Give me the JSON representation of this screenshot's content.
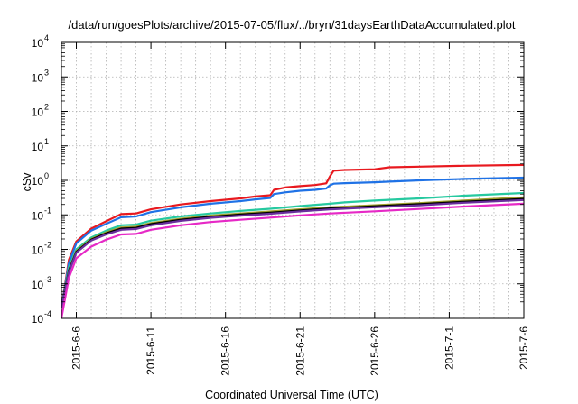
{
  "chart_data": {
    "type": "line",
    "title": "/data/run/goesPlots/archive/2015-07-05/flux/../bryn/31daysEarthDataAccumulated.plot",
    "xlabel": "Coordinated Universal Time (UTC)",
    "ylabel": "cSv",
    "y_scale": "log",
    "ylim": [
      0.0001,
      10000
    ],
    "y_ticks": [
      {
        "base": "10",
        "exp": "-4"
      },
      {
        "base": "10",
        "exp": "-3"
      },
      {
        "base": "10",
        "exp": "-2"
      },
      {
        "base": "10",
        "exp": "-1"
      },
      {
        "base": "10",
        "exp": "0"
      },
      {
        "base": "10",
        "exp": "1"
      },
      {
        "base": "10",
        "exp": "2"
      },
      {
        "base": "10",
        "exp": "3"
      },
      {
        "base": "10",
        "exp": "4"
      }
    ],
    "xlim": [
      "2015-06-05",
      "2015-07-06"
    ],
    "x_tick_labels": [
      "2015-6-6",
      "2015-6-11",
      "2015-6-16",
      "2015-6-21",
      "2015-6-26",
      "2015-7-1",
      "2015-7-6"
    ],
    "x_tick_dates": [
      "2015-06-06",
      "2015-06-11",
      "2015-06-16",
      "2015-06-21",
      "2015-06-26",
      "2015-07-01",
      "2015-07-06"
    ],
    "grid": true,
    "series": [
      {
        "color": "#e8191f",
        "points": [
          [
            "2015-06-05",
            0.0002
          ],
          [
            "2015-06-05T12:00",
            0.005
          ],
          [
            "2015-06-06",
            0.017
          ],
          [
            "2015-06-07",
            0.04
          ],
          [
            "2015-06-08",
            0.065
          ],
          [
            "2015-06-09",
            0.105
          ],
          [
            "2015-06-10",
            0.11
          ],
          [
            "2015-06-11",
            0.145
          ],
          [
            "2015-06-13",
            0.2
          ],
          [
            "2015-06-15",
            0.25
          ],
          [
            "2015-06-17",
            0.3
          ],
          [
            "2015-06-18",
            0.34
          ],
          [
            "2015-06-19",
            0.37
          ],
          [
            "2015-06-19T06:00",
            0.53
          ],
          [
            "2015-06-20",
            0.62
          ],
          [
            "2015-06-21",
            0.68
          ],
          [
            "2015-06-22",
            0.73
          ],
          [
            "2015-06-22T18:00",
            0.82
          ],
          [
            "2015-06-23",
            1.3
          ],
          [
            "2015-06-23T06:00",
            1.9
          ],
          [
            "2015-06-24",
            2.0
          ],
          [
            "2015-06-26",
            2.1
          ],
          [
            "2015-06-27",
            2.4
          ],
          [
            "2015-06-29",
            2.5
          ],
          [
            "2015-07-02",
            2.65
          ],
          [
            "2015-07-06",
            2.8
          ]
        ]
      },
      {
        "color": "#1f72e6",
        "points": [
          [
            "2015-06-05",
            0.0002
          ],
          [
            "2015-06-05T12:00",
            0.004
          ],
          [
            "2015-06-06",
            0.015
          ],
          [
            "2015-06-07",
            0.035
          ],
          [
            "2015-06-08",
            0.055
          ],
          [
            "2015-06-09",
            0.085
          ],
          [
            "2015-06-10",
            0.09
          ],
          [
            "2015-06-11",
            0.12
          ],
          [
            "2015-06-13",
            0.165
          ],
          [
            "2015-06-15",
            0.21
          ],
          [
            "2015-06-17",
            0.25
          ],
          [
            "2015-06-18",
            0.28
          ],
          [
            "2015-06-19",
            0.31
          ],
          [
            "2015-06-19T06:00",
            0.4
          ],
          [
            "2015-06-20",
            0.45
          ],
          [
            "2015-06-21",
            0.5
          ],
          [
            "2015-06-22",
            0.53
          ],
          [
            "2015-06-22T18:00",
            0.58
          ],
          [
            "2015-06-23",
            0.72
          ],
          [
            "2015-06-23T06:00",
            0.8
          ],
          [
            "2015-06-24",
            0.83
          ],
          [
            "2015-06-26",
            0.88
          ],
          [
            "2015-06-27",
            0.92
          ],
          [
            "2015-06-29",
            1.0
          ],
          [
            "2015-07-02",
            1.1
          ],
          [
            "2015-07-06",
            1.2
          ]
        ]
      },
      {
        "color": "#26c9a0",
        "points": [
          [
            "2015-06-05",
            0.0002
          ],
          [
            "2015-06-05T12:00",
            0.003
          ],
          [
            "2015-06-06",
            0.01
          ],
          [
            "2015-06-07",
            0.022
          ],
          [
            "2015-06-08",
            0.035
          ],
          [
            "2015-06-09",
            0.05
          ],
          [
            "2015-06-10",
            0.052
          ],
          [
            "2015-06-11",
            0.068
          ],
          [
            "2015-06-13",
            0.09
          ],
          [
            "2015-06-15",
            0.11
          ],
          [
            "2015-06-17",
            0.13
          ],
          [
            "2015-06-19",
            0.15
          ],
          [
            "2015-06-21",
            0.18
          ],
          [
            "2015-06-23",
            0.21
          ],
          [
            "2015-06-24",
            0.23
          ],
          [
            "2015-06-26",
            0.26
          ],
          [
            "2015-06-29",
            0.3
          ],
          [
            "2015-07-02",
            0.36
          ],
          [
            "2015-07-06",
            0.43
          ]
        ]
      },
      {
        "color": "#9f9f2a",
        "points": [
          [
            "2015-06-05",
            0.0002
          ],
          [
            "2015-06-05T12:00",
            0.0025
          ],
          [
            "2015-06-06",
            0.009
          ],
          [
            "2015-06-07",
            0.02
          ],
          [
            "2015-06-08",
            0.031
          ],
          [
            "2015-06-09",
            0.043
          ],
          [
            "2015-06-10",
            0.045
          ],
          [
            "2015-06-11",
            0.058
          ],
          [
            "2015-06-13",
            0.077
          ],
          [
            "2015-06-15",
            0.095
          ],
          [
            "2015-06-17",
            0.11
          ],
          [
            "2015-06-19",
            0.125
          ],
          [
            "2015-06-21",
            0.145
          ],
          [
            "2015-06-23",
            0.165
          ],
          [
            "2015-06-26",
            0.19
          ],
          [
            "2015-06-29",
            0.22
          ],
          [
            "2015-07-02",
            0.26
          ],
          [
            "2015-07-06",
            0.32
          ]
        ]
      },
      {
        "color": "#000000",
        "points": [
          [
            "2015-06-05",
            0.0002
          ],
          [
            "2015-06-05T12:00",
            0.0024
          ],
          [
            "2015-06-06",
            0.0085
          ],
          [
            "2015-06-07",
            0.019
          ],
          [
            "2015-06-08",
            0.029
          ],
          [
            "2015-06-09",
            0.04
          ],
          [
            "2015-06-10",
            0.042
          ],
          [
            "2015-06-11",
            0.054
          ],
          [
            "2015-06-13",
            0.072
          ],
          [
            "2015-06-15",
            0.088
          ],
          [
            "2015-06-17",
            0.102
          ],
          [
            "2015-06-19",
            0.116
          ],
          [
            "2015-06-21",
            0.135
          ],
          [
            "2015-06-23",
            0.154
          ],
          [
            "2015-06-26",
            0.178
          ],
          [
            "2015-06-29",
            0.205
          ],
          [
            "2015-07-02",
            0.24
          ],
          [
            "2015-07-06",
            0.29
          ]
        ]
      },
      {
        "color": "#6a2f9e",
        "points": [
          [
            "2015-06-05",
            0.0002
          ],
          [
            "2015-06-05T12:00",
            0.0022
          ],
          [
            "2015-06-06",
            0.008
          ],
          [
            "2015-06-07",
            0.018
          ],
          [
            "2015-06-08",
            0.027
          ],
          [
            "2015-06-09",
            0.037
          ],
          [
            "2015-06-10",
            0.039
          ],
          [
            "2015-06-11",
            0.05
          ],
          [
            "2015-06-13",
            0.067
          ],
          [
            "2015-06-15",
            0.082
          ],
          [
            "2015-06-17",
            0.095
          ],
          [
            "2015-06-19",
            0.108
          ],
          [
            "2015-06-21",
            0.126
          ],
          [
            "2015-06-23",
            0.144
          ],
          [
            "2015-06-26",
            0.166
          ],
          [
            "2015-06-29",
            0.19
          ],
          [
            "2015-07-02",
            0.225
          ],
          [
            "2015-07-06",
            0.27
          ]
        ]
      },
      {
        "color": "#e629c6",
        "points": [
          [
            "2015-06-05",
            0.0001
          ],
          [
            "2015-06-05T12:00",
            0.0015
          ],
          [
            "2015-06-06",
            0.0055
          ],
          [
            "2015-06-07",
            0.012
          ],
          [
            "2015-06-08",
            0.019
          ],
          [
            "2015-06-09",
            0.027
          ],
          [
            "2015-06-10",
            0.028
          ],
          [
            "2015-06-11",
            0.037
          ],
          [
            "2015-06-13",
            0.05
          ],
          [
            "2015-06-15",
            0.062
          ],
          [
            "2015-06-17",
            0.072
          ],
          [
            "2015-06-19",
            0.083
          ],
          [
            "2015-06-21",
            0.097
          ],
          [
            "2015-06-23",
            0.11
          ],
          [
            "2015-06-26",
            0.127
          ],
          [
            "2015-06-29",
            0.148
          ],
          [
            "2015-07-02",
            0.175
          ],
          [
            "2015-07-06",
            0.21
          ]
        ]
      }
    ]
  }
}
